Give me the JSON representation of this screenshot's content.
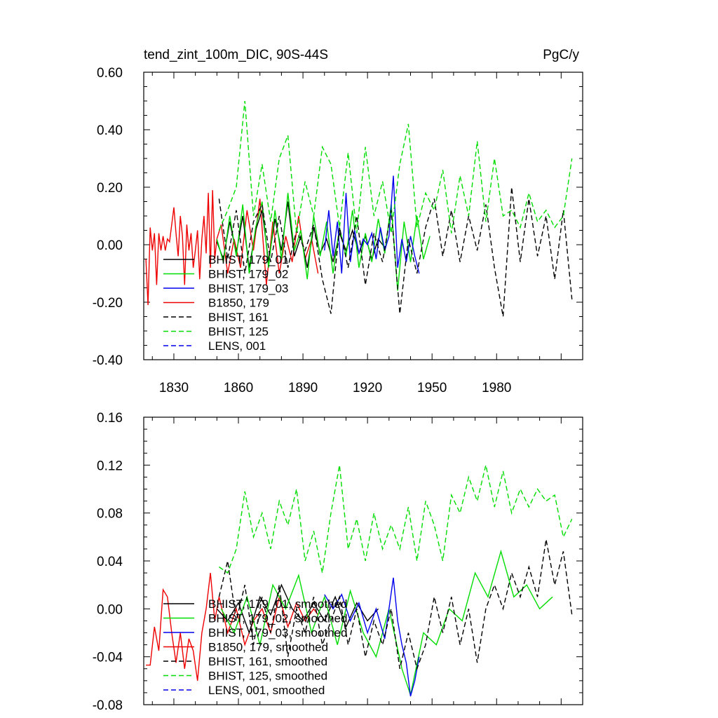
{
  "top": {
    "title_left": "tend_zint_100m_DIC, 90S-44S",
    "title_right": "PgC/y",
    "y_ticks": [
      "0.60",
      "0.40",
      "0.20",
      "0.00",
      "-0.20",
      "-0.40"
    ],
    "x_ticks": [
      "1830",
      "1860",
      "1890",
      "1920",
      "1950",
      "1980"
    ],
    "legend": [
      {
        "label": "BHIST, 179_01",
        "color": "#000000",
        "dash": false
      },
      {
        "label": "BHIST, 179_02",
        "color": "#00dd00",
        "dash": false
      },
      {
        "label": "BHIST, 179_03",
        "color": "#0000ee",
        "dash": false
      },
      {
        "label": "B1850, 179",
        "color": "#ee0000",
        "dash": false
      },
      {
        "label": "BHIST, 161",
        "color": "#000000",
        "dash": true
      },
      {
        "label": "BHIST, 125",
        "color": "#00dd00",
        "dash": true
      },
      {
        "label": "LENS, 001",
        "color": "#0000ee",
        "dash": true
      }
    ]
  },
  "bottom": {
    "y_ticks": [
      "0.16",
      "0.12",
      "0.08",
      "0.04",
      "0.00",
      "-0.04",
      "-0.08"
    ],
    "legend": [
      {
        "label": "BHIST, 179_01, smoothed",
        "color": "#000000",
        "dash": false
      },
      {
        "label": "BHIST, 179_02, smoothed",
        "color": "#00dd00",
        "dash": false
      },
      {
        "label": "BHIST, 179_03, smoothed",
        "color": "#0000ee",
        "dash": false
      },
      {
        "label": "B1850, 179, smoothed",
        "color": "#ee0000",
        "dash": false
      },
      {
        "label": "BHIST, 161, smoothed",
        "color": "#000000",
        "dash": true
      },
      {
        "label": "BHIST, 125, smoothed",
        "color": "#00dd00",
        "dash": true
      },
      {
        "label": "LENS, 001, smoothed",
        "color": "#0000ee",
        "dash": true
      }
    ]
  },
  "chart_data": [
    {
      "type": "line",
      "title": "tend_zint_100m_DIC, 90S-44S",
      "units": "PgC/y",
      "xlim": [
        1816,
        2020
      ],
      "ylim": [
        -0.4,
        0.6
      ],
      "series": [
        {
          "name": "B1850, 179",
          "color": "#ee0000",
          "dash": false,
          "x": [
            1817,
            1818,
            1819,
            1820,
            1821,
            1822,
            1823,
            1824,
            1825,
            1826,
            1827,
            1828,
            1829,
            1830,
            1831,
            1832,
            1833,
            1834,
            1835,
            1836,
            1837,
            1838,
            1839,
            1840,
            1841,
            1842,
            1843,
            1844,
            1845,
            1846,
            1847,
            1848,
            1849,
            1850,
            1852,
            1855,
            1858,
            1861,
            1864,
            1867,
            1870,
            1873,
            1876,
            1879,
            1882,
            1885,
            1888,
            1891,
            1894,
            1897
          ],
          "y": [
            -0.05,
            -0.21,
            0.06,
            -0.02,
            0.04,
            -0.14,
            0.04,
            -0.02,
            0.03,
            -0.02,
            0.02,
            0.01,
            0.07,
            0.13,
            0.04,
            -0.04,
            0.1,
            0.03,
            -0.14,
            0.07,
            -0.02,
            0.04,
            -0.08,
            -0.02,
            0.05,
            -0.12,
            0.02,
            0.1,
            -0.03,
            0.18,
            -0.08,
            0.19,
            -0.05,
            0.02,
            0.07,
            -0.1,
            0.02,
            -0.08,
            0.12,
            -0.02,
            0.16,
            -0.14,
            0.08,
            -0.1,
            0.03,
            -0.06,
            0.1,
            -0.05,
            0.02,
            -0.1
          ]
        },
        {
          "name": "BHIST, 179_01",
          "color": "#000000",
          "dash": false,
          "x": [
            1850,
            1853,
            1856,
            1859,
            1862,
            1865,
            1868,
            1871,
            1874,
            1877,
            1880,
            1883,
            1886,
            1889,
            1892,
            1895,
            1898,
            1901,
            1904,
            1907,
            1910,
            1913,
            1916,
            1919,
            1922,
            1925,
            1928
          ],
          "y": [
            0.01,
            -0.05,
            0.08,
            -0.03,
            0.1,
            -0.08,
            0.05,
            0.12,
            -0.06,
            0.09,
            -0.02,
            0.15,
            -0.04,
            0.03,
            -0.08,
            0.06,
            -0.03,
            0.02,
            -0.06,
            0.04,
            -0.02,
            0.05,
            -0.03,
            0.03,
            -0.05,
            0.02,
            -0.01
          ]
        },
        {
          "name": "BHIST, 179_02",
          "color": "#00dd00",
          "dash": false,
          "x": [
            1850,
            1853,
            1856,
            1859,
            1862,
            1865,
            1868,
            1871,
            1874,
            1877,
            1880,
            1883,
            1886,
            1889,
            1892,
            1895,
            1898,
            1901,
            1904,
            1907,
            1910,
            1913,
            1916,
            1919,
            1922,
            1925,
            1928,
            1931,
            1934,
            1937,
            1940,
            1943,
            1946,
            1949
          ],
          "y": [
            0.02,
            -0.06,
            0.1,
            -0.04,
            0.14,
            -0.1,
            0.06,
            0.15,
            -0.08,
            0.12,
            -0.05,
            0.18,
            -0.02,
            0.05,
            -0.12,
            0.1,
            -0.04,
            0.08,
            -0.1,
            0.06,
            -0.04,
            0.12,
            -0.08,
            0.04,
            -0.06,
            0.09,
            -0.03,
            0.14,
            -0.16,
            0.08,
            -0.06,
            0.1,
            -0.05,
            0.03
          ]
        },
        {
          "name": "BHIST, 179_03",
          "color": "#0000ee",
          "dash": false,
          "x": [
            1900,
            1902,
            1904,
            1906,
            1908,
            1910,
            1912,
            1914,
            1916,
            1918,
            1920,
            1922,
            1924,
            1926,
            1928,
            1930,
            1932,
            1934,
            1936,
            1938,
            1940,
            1942,
            1944
          ],
          "y": [
            -0.02,
            0.12,
            -0.04,
            0.08,
            -0.1,
            0.18,
            -0.06,
            0.05,
            -0.03,
            0.02,
            0.0,
            0.04,
            -0.05,
            0.06,
            -0.02,
            0.03,
            0.24,
            -0.08,
            0.02,
            -0.06,
            0.03,
            -0.04,
            -0.1
          ]
        },
        {
          "name": "BHIST, 161",
          "color": "#000000",
          "dash": true,
          "x": [
            1851,
            1855,
            1859,
            1863,
            1867,
            1871,
            1875,
            1879,
            1883,
            1887,
            1891,
            1895,
            1899,
            1903,
            1907,
            1911,
            1915,
            1919,
            1923,
            1927,
            1931,
            1935,
            1939,
            1943,
            1947,
            1951,
            1955,
            1959,
            1963,
            1967,
            1971,
            1975,
            1979,
            1983,
            1987,
            1991,
            1995,
            1999,
            2003,
            2007,
            2011,
            2015
          ],
          "y": [
            0.16,
            -0.05,
            0.12,
            -0.1,
            0.08,
            0.14,
            -0.06,
            0.1,
            -0.08,
            0.05,
            -0.02,
            0.07,
            -0.12,
            -0.24,
            0.06,
            -0.08,
            0.1,
            -0.14,
            0.04,
            -0.06,
            0.12,
            -0.24,
            0.02,
            -0.1,
            0.06,
            0.16,
            -0.04,
            0.12,
            -0.06,
            0.1,
            -0.02,
            0.14,
            -0.08,
            -0.25,
            0.2,
            -0.06,
            0.16,
            -0.04,
            0.1,
            -0.12,
            0.12,
            -0.19
          ]
        },
        {
          "name": "BHIST, 125",
          "color": "#00dd00",
          "dash": true,
          "x": [
            1851,
            1855,
            1859,
            1863,
            1867,
            1871,
            1875,
            1879,
            1883,
            1887,
            1891,
            1895,
            1899,
            1903,
            1907,
            1911,
            1915,
            1919,
            1923,
            1927,
            1931,
            1935,
            1939,
            1943,
            1947,
            1951,
            1955,
            1959,
            1963,
            1967,
            1971,
            1975,
            1979,
            1983,
            1987,
            1991,
            1995,
            1999,
            2003,
            2007,
            2011,
            2015
          ],
          "y": [
            0.05,
            0.12,
            0.2,
            0.5,
            0.1,
            0.28,
            0.08,
            0.3,
            0.38,
            0.04,
            0.22,
            0.1,
            0.34,
            0.28,
            0.06,
            0.32,
            0.04,
            0.34,
            0.1,
            0.22,
            0.04,
            0.28,
            0.42,
            0.06,
            0.18,
            0.12,
            0.26,
            0.04,
            0.24,
            0.1,
            0.36,
            0.08,
            0.3,
            0.1,
            0.12,
            0.06,
            0.18,
            0.08,
            0.12,
            0.06,
            0.1,
            0.3
          ]
        }
      ]
    },
    {
      "type": "line",
      "xlim": [
        1816,
        2020
      ],
      "ylim": [
        -0.08,
        0.16
      ],
      "series": [
        {
          "name": "B1850, 179, smoothed",
          "color": "#ee0000",
          "dash": false,
          "x": [
            1817,
            1819,
            1821,
            1823,
            1825,
            1827,
            1829,
            1831,
            1833,
            1835,
            1837,
            1839,
            1841,
            1843,
            1845,
            1847,
            1849,
            1851,
            1855,
            1859,
            1863,
            1867,
            1871,
            1875,
            1879,
            1883,
            1887,
            1891,
            1895,
            1897
          ],
          "y": [
            -0.047,
            -0.047,
            -0.015,
            -0.035,
            0.016,
            0.01,
            -0.02,
            -0.045,
            -0.02,
            -0.05,
            -0.025,
            -0.035,
            -0.06,
            -0.02,
            0.0,
            0.03,
            -0.01,
            0.01,
            -0.02,
            0.0,
            -0.03,
            -0.01,
            0.0,
            -0.02,
            0.01,
            -0.015,
            0.005,
            -0.01,
            0.0,
            -0.005
          ]
        },
        {
          "name": "BHIST, 179_01, smoothed",
          "color": "#000000",
          "dash": false,
          "x": [
            1850,
            1855,
            1860,
            1865,
            1870,
            1875,
            1880,
            1885,
            1890,
            1895,
            1900,
            1905,
            1910,
            1915,
            1920,
            1925
          ],
          "y": [
            0.0,
            -0.01,
            0.005,
            -0.02,
            0.01,
            -0.005,
            0.02,
            0.0,
            -0.01,
            0.005,
            -0.01,
            0.01,
            -0.015,
            0.005,
            -0.01,
            0.0
          ]
        },
        {
          "name": "BHIST, 179_02, smoothed",
          "color": "#00dd00",
          "dash": false,
          "x": [
            1852,
            1858,
            1864,
            1870,
            1876,
            1882,
            1888,
            1894,
            1900,
            1906,
            1912,
            1918,
            1924,
            1930,
            1936,
            1940,
            1946,
            1952,
            1958,
            1964,
            1970,
            1976,
            1982,
            1988,
            1994,
            2000,
            2006
          ],
          "y": [
            0.0,
            -0.02,
            0.01,
            -0.03,
            0.02,
            0.0,
            0.028,
            -0.02,
            0.01,
            -0.03,
            0.015,
            -0.02,
            -0.04,
            0.0,
            -0.05,
            -0.072,
            -0.02,
            -0.03,
            0.0,
            -0.01,
            0.03,
            0.01,
            0.048,
            0.01,
            0.02,
            0.0,
            0.01
          ]
        },
        {
          "name": "BHIST, 179_03, smoothed",
          "color": "#0000ee",
          "dash": false,
          "x": [
            1900,
            1904,
            1908,
            1912,
            1916,
            1920,
            1924,
            1928,
            1932,
            1934,
            1936,
            1938,
            1940,
            1942,
            1944
          ],
          "y": [
            0.012,
            0.0,
            0.012,
            -0.01,
            0.005,
            -0.02,
            0.0,
            -0.025,
            0.026,
            -0.01,
            -0.03,
            -0.045,
            -0.073,
            -0.06,
            -0.04
          ]
        },
        {
          "name": "BHIST, 161, smoothed",
          "color": "#000000",
          "dash": true,
          "x": [
            1851,
            1855,
            1859,
            1863,
            1867,
            1871,
            1875,
            1879,
            1883,
            1887,
            1891,
            1895,
            1899,
            1903,
            1907,
            1911,
            1915,
            1919,
            1923,
            1927,
            1931,
            1935,
            1939,
            1943,
            1947,
            1951,
            1955,
            1959,
            1963,
            1967,
            1971,
            1975,
            1979,
            1983,
            1987,
            1991,
            1995,
            1999,
            2003,
            2007,
            2011,
            2015
          ],
          "y": [
            0.01,
            0.04,
            -0.01,
            0.02,
            -0.03,
            0.01,
            -0.02,
            0.02,
            -0.04,
            0.0,
            -0.02,
            0.01,
            -0.03,
            -0.01,
            0.01,
            -0.03,
            0.0,
            -0.04,
            -0.01,
            -0.03,
            0.0,
            -0.05,
            -0.02,
            -0.05,
            -0.03,
            0.01,
            -0.02,
            0.01,
            -0.03,
            0.0,
            -0.045,
            0.0,
            0.02,
            0.0,
            0.03,
            0.01,
            0.035,
            0.01,
            0.058,
            0.02,
            0.048,
            -0.005
          ]
        },
        {
          "name": "BHIST, 125, smoothed",
          "color": "#00dd00",
          "dash": true,
          "x": [
            1851,
            1855,
            1859,
            1863,
            1867,
            1871,
            1875,
            1879,
            1883,
            1887,
            1891,
            1895,
            1899,
            1903,
            1907,
            1911,
            1915,
            1919,
            1923,
            1927,
            1931,
            1935,
            1939,
            1943,
            1947,
            1951,
            1955,
            1959,
            1963,
            1967,
            1971,
            1975,
            1979,
            1983,
            1987,
            1991,
            1995,
            1999,
            2003,
            2007,
            2011,
            2015
          ],
          "y": [
            0.035,
            0.03,
            0.05,
            0.098,
            0.06,
            0.08,
            0.05,
            0.09,
            0.07,
            0.1,
            0.04,
            0.065,
            0.03,
            0.08,
            0.12,
            0.05,
            0.075,
            0.04,
            0.08,
            0.05,
            0.07,
            0.05,
            0.085,
            0.04,
            0.09,
            0.07,
            0.04,
            0.095,
            0.08,
            0.11,
            0.09,
            0.12,
            0.085,
            0.115,
            0.08,
            0.1,
            0.085,
            0.1,
            0.09,
            0.095,
            0.06,
            0.075
          ]
        }
      ]
    }
  ]
}
